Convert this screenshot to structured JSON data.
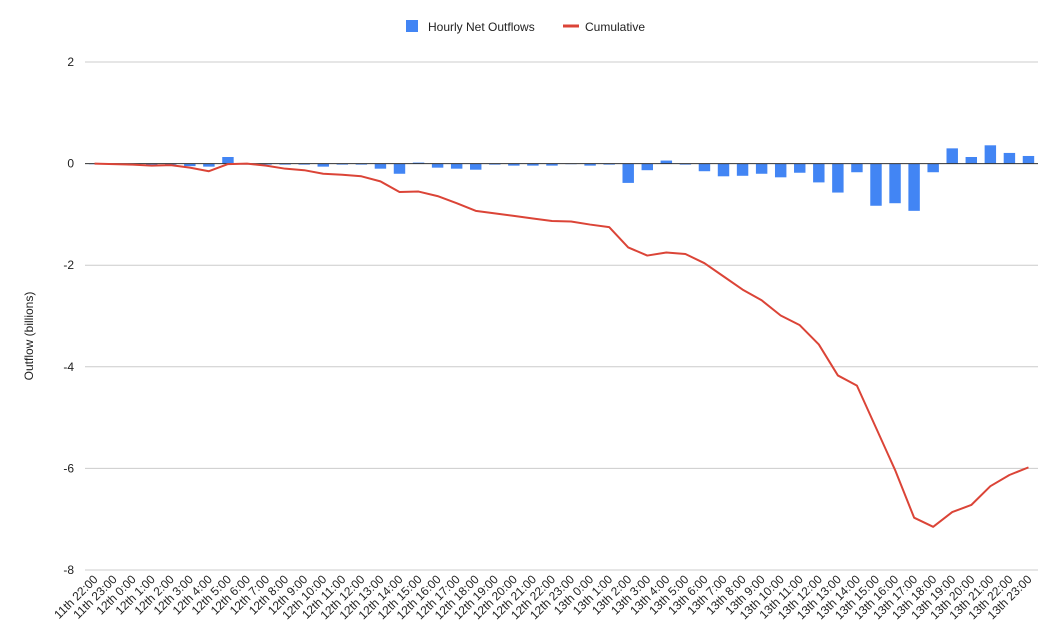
{
  "chart_data": {
    "type": "bar",
    "categories": [
      "11th 22:00",
      "11th 23:00",
      "12th 0:00",
      "12th 1:00",
      "12th 2:00",
      "12th 3:00",
      "12th 4:00",
      "12th 5:00",
      "12th 6:00",
      "12th 7:00",
      "12th 8:00",
      "12th 9:00",
      "12th 10:00",
      "12th 11:00",
      "12th 12:00",
      "12th 13:00",
      "12th 14:00",
      "12th 15:00",
      "12th 16:00",
      "12th 17:00",
      "12th 18:00",
      "12th 19:00",
      "12th 20:00",
      "12th 21:00",
      "12th 22:00",
      "12th 23:00",
      "13th 0:00",
      "13th 1:00",
      "13th 2:00",
      "13th 3:00",
      "13th 4:00",
      "13th 5:00",
      "13th 6:00",
      "13th 7:00",
      "13th 8:00",
      "13th 9:00",
      "13th 10:00",
      "13th 11:00",
      "13th 12:00",
      "13th 13:00",
      "13th 14:00",
      "13th 15:00",
      "13th 16:00",
      "13th 17:00",
      "13th 18:00",
      "13th 19:00",
      "13th 20:00",
      "13th 21:00",
      "13th 22:00",
      "13th 23:00"
    ],
    "series": [
      {
        "name": "Hourly Net Outflows",
        "type": "bar",
        "color": "#4285f4",
        "values": [
          0,
          -0.01,
          -0.01,
          -0.02,
          -0.02,
          -0.05,
          -0.06,
          0.13,
          -0.02,
          -0.02,
          -0.02,
          -0.02,
          -0.06,
          -0.02,
          -0.02,
          -0.1,
          -0.2,
          0.02,
          -0.08,
          -0.1,
          -0.12,
          -0.02,
          -0.04,
          -0.04,
          -0.04,
          0,
          -0.04,
          -0.02,
          -0.38,
          -0.13,
          0.06,
          -0.02,
          -0.15,
          -0.25,
          -0.24,
          -0.2,
          -0.27,
          -0.18,
          -0.37,
          -0.57,
          -0.17,
          -0.83,
          -0.78,
          -0.93,
          -0.17,
          0.3,
          0.13,
          0.36,
          0.21,
          0.15
        ]
      },
      {
        "name": "Cumulative",
        "type": "line",
        "color": "#db4437",
        "values": [
          0,
          -0.01,
          -0.02,
          -0.04,
          -0.03,
          -0.08,
          -0.15,
          -0.01,
          0,
          -0.04,
          -0.1,
          -0.13,
          -0.2,
          -0.22,
          -0.25,
          -0.35,
          -0.56,
          -0.55,
          -0.64,
          -0.78,
          -0.93,
          -0.98,
          -1.03,
          -1.08,
          -1.13,
          -1.14,
          -1.2,
          -1.25,
          -1.65,
          -1.81,
          -1.75,
          -1.78,
          -1.96,
          -2.22,
          -2.48,
          -2.69,
          -2.99,
          -3.18,
          -3.56,
          -4.17,
          -4.37,
          -5.2,
          -6.03,
          -6.97,
          -7.15,
          -6.86,
          -6.72,
          -6.35,
          -6.13,
          -5.98
        ]
      }
    ],
    "title": "",
    "xlabel": "",
    "ylabel": "Outflow (billions)",
    "ylim": [
      -8,
      2
    ],
    "yticks": [
      2,
      0,
      -2,
      -4,
      -6,
      -8
    ],
    "grid": true,
    "legend": "top-center"
  }
}
